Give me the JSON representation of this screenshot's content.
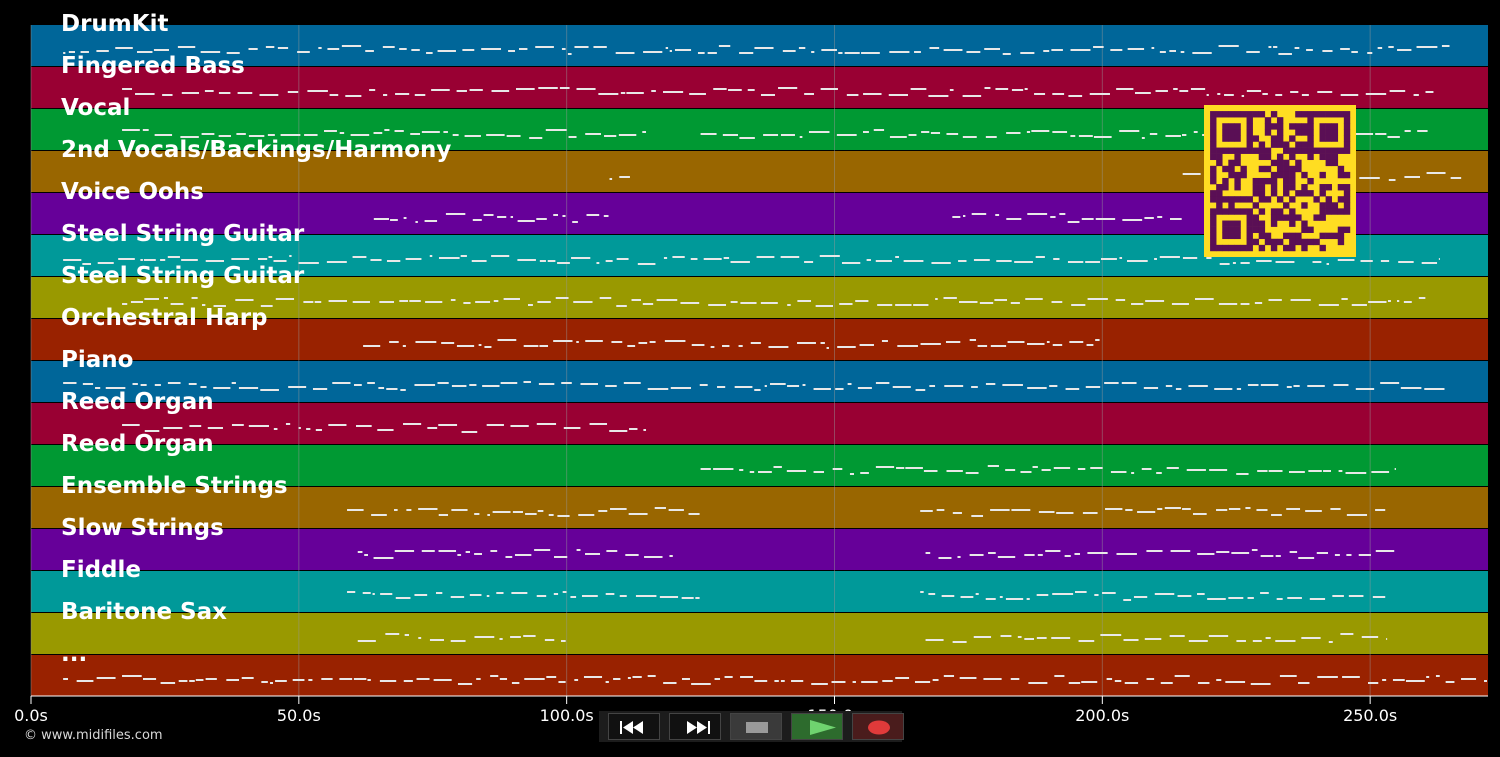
{
  "colors": {
    "background": "#000000",
    "track_bands": [
      "#006699",
      "#990033",
      "#009933",
      "#996600",
      "#660099",
      "#009999",
      "#999900",
      "#992200"
    ],
    "notes": "#e8e8e8",
    "grid": "#9a9a9a",
    "qr_fg": "#5a0f55",
    "qr_bg": "#ffdd22"
  },
  "tracks": [
    {
      "name": "DrumKit"
    },
    {
      "name": "Fingered Bass"
    },
    {
      "name": "Vocal"
    },
    {
      "name": "2nd Vocals/Backings/Harmony"
    },
    {
      "name": "Voice Oohs"
    },
    {
      "name": "Steel String Guitar"
    },
    {
      "name": "Steel String Guitar"
    },
    {
      "name": "Orchestral Harp"
    },
    {
      "name": "Piano"
    },
    {
      "name": "Reed Organ"
    },
    {
      "name": "Reed Organ"
    },
    {
      "name": "Ensemble Strings"
    },
    {
      "name": "Slow Strings"
    },
    {
      "name": "Fiddle"
    },
    {
      "name": "Baritone Sax"
    },
    {
      "name": "..."
    }
  ],
  "timeline": {
    "duration_s": 272,
    "ticks": [
      {
        "value": 0,
        "label": "0.0s"
      },
      {
        "value": 50,
        "label": "50.0s"
      },
      {
        "value": 100,
        "label": "100.0s"
      },
      {
        "value": 150,
        "label": "150.0s"
      },
      {
        "value": 200,
        "label": "200.0s"
      },
      {
        "value": 250,
        "label": "250.0s"
      }
    ]
  },
  "copyright": "© www.midifiles.com",
  "transport": {
    "buttons": [
      {
        "icon": "rewind-icon"
      },
      {
        "icon": "fast-forward-icon"
      },
      {
        "icon": "stop-icon"
      },
      {
        "icon": "play-icon"
      },
      {
        "icon": "record-icon"
      }
    ]
  }
}
